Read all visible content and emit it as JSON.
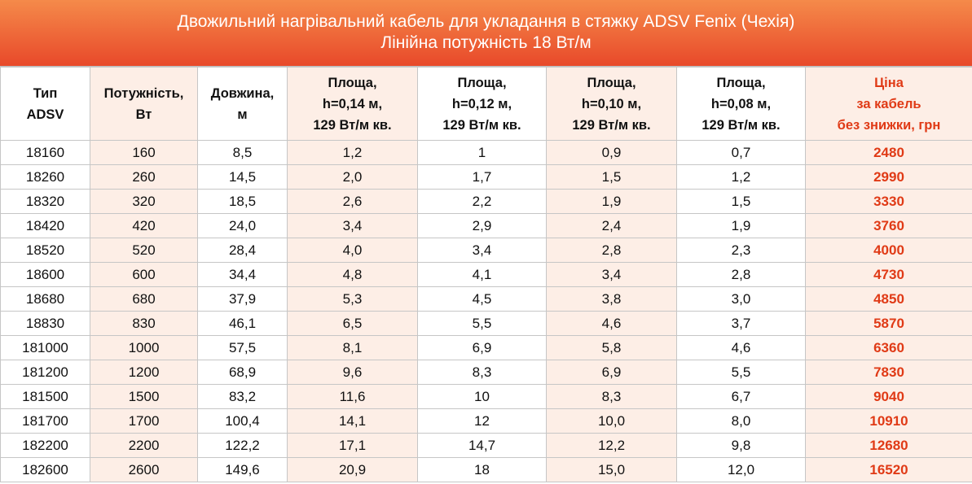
{
  "header": {
    "title": "Двожильний нагрівальний кабель для укладання в стяжку ADSV Fenix (Чехія)",
    "subtitle": "Лінійна потужність 18 Вт/м"
  },
  "table": {
    "columns": [
      "Тип\nADSV",
      "Потужність,\nВт",
      "Довжина,\nм",
      "Площа,\nh=0,14 м,\n129 Вт/м кв.",
      "Площа,\nh=0,12 м,\n129 Вт/м кв.",
      "Площа,\nh=0,10 м,\n129 Вт/м кв.",
      "Площа,\nh=0,08 м,\n129 Вт/м кв.",
      "Ціна\nза кабель\nбез знижки, грн"
    ],
    "rows": [
      [
        "18160",
        "160",
        "8,5",
        "1,2",
        "1",
        "0,9",
        "0,7",
        "2480"
      ],
      [
        "18260",
        "260",
        "14,5",
        "2,0",
        "1,7",
        "1,5",
        "1,2",
        "2990"
      ],
      [
        "18320",
        "320",
        "18,5",
        "2,6",
        "2,2",
        "1,9",
        "1,5",
        "3330"
      ],
      [
        "18420",
        "420",
        "24,0",
        "3,4",
        "2,9",
        "2,4",
        "1,9",
        "3760"
      ],
      [
        "18520",
        "520",
        "28,4",
        "4,0",
        "3,4",
        "2,8",
        "2,3",
        "4000"
      ],
      [
        "18600",
        "600",
        "34,4",
        "4,8",
        "4,1",
        "3,4",
        "2,8",
        "4730"
      ],
      [
        "18680",
        "680",
        "37,9",
        "5,3",
        "4,5",
        "3,8",
        "3,0",
        "4850"
      ],
      [
        "18830",
        "830",
        "46,1",
        "6,5",
        "5,5",
        "4,6",
        "3,7",
        "5870"
      ],
      [
        "181000",
        "1000",
        "57,5",
        "8,1",
        "6,9",
        "5,8",
        "4,6",
        "6360"
      ],
      [
        "181200",
        "1200",
        "68,9",
        "9,6",
        "8,3",
        "6,9",
        "5,5",
        "7830"
      ],
      [
        "181500",
        "1500",
        "83,2",
        "11,6",
        "10",
        "8,3",
        "6,7",
        "9040"
      ],
      [
        "181700",
        "1700",
        "100,4",
        "14,1",
        "12",
        "10,0",
        "8,0",
        "10910"
      ],
      [
        "182200",
        "2200",
        "122,2",
        "17,1",
        "14,7",
        "12,2",
        "9,8",
        "12680"
      ],
      [
        "182600",
        "2600",
        "149,6",
        "20,9",
        "18",
        "15,0",
        "12,0",
        "16520"
      ]
    ]
  }
}
